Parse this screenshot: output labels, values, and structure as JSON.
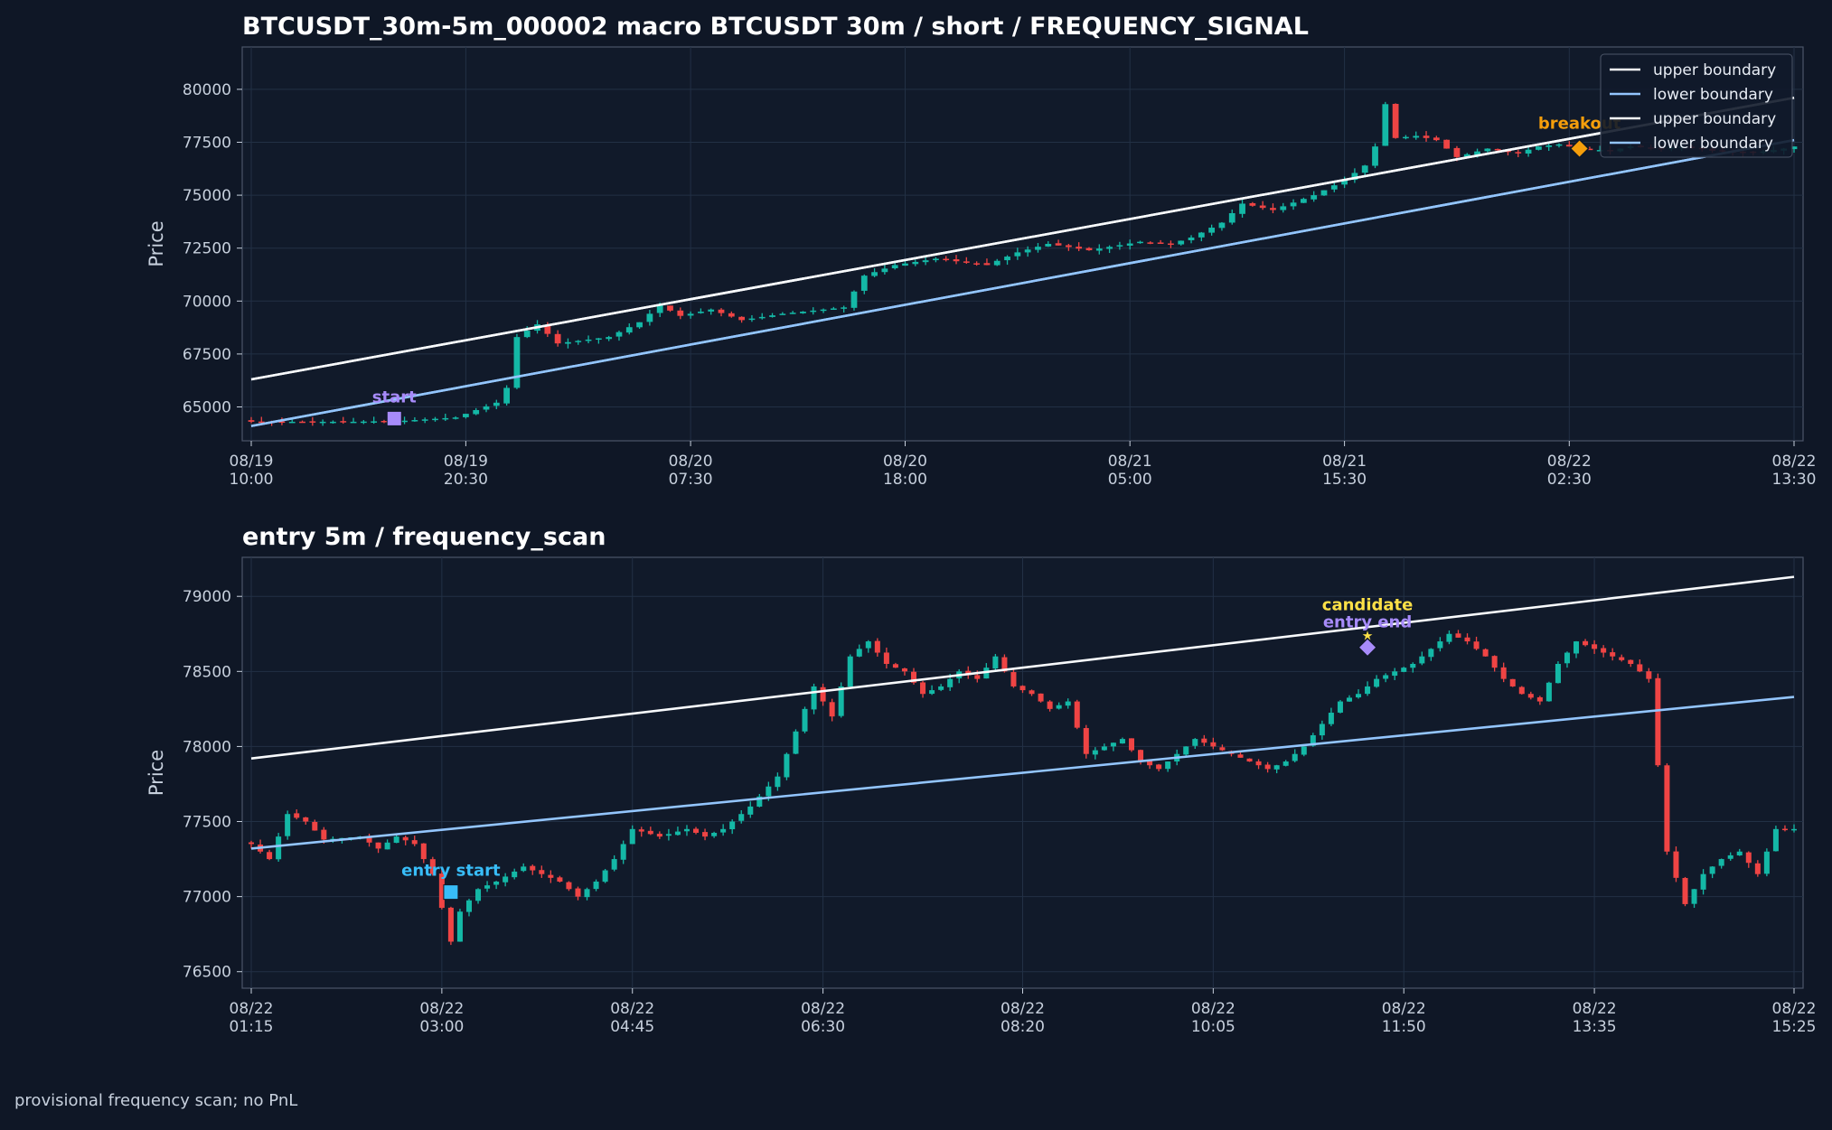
{
  "footer": "provisional frequency scan; no PnL",
  "colors": {
    "background": "#0f1726",
    "panel": "#111a2a",
    "grid": "#223045",
    "text": "#e8edf5",
    "tick": "#c7d0dd",
    "up": "#14b8a6",
    "down": "#ef4444",
    "upper_boundary": "#f8fafc",
    "lower_boundary": "#93c5fd",
    "start": "#a78bfa",
    "entry_start": "#38bdf8",
    "candidate": "#fde047",
    "entry_end": "#a78bfa",
    "breakout": "#f59e0b"
  },
  "chart_data": [
    {
      "type": "candlestick",
      "title": "BTCUSDT_30m-5m_000002 macro BTCUSDT 30m / short / FREQUENCY_SIGNAL",
      "ylabel": "Price",
      "ylim": [
        63400,
        82000
      ],
      "yticks": [
        65000,
        67500,
        70000,
        72500,
        75000,
        77500,
        80000
      ],
      "xticks": [
        {
          "i": 0,
          "date": "08/19",
          "time": "10:00"
        },
        {
          "i": 21,
          "date": "08/19",
          "time": "20:30"
        },
        {
          "i": 43,
          "date": "08/20",
          "time": "07:30"
        },
        {
          "i": 64,
          "date": "08/20",
          "time": "18:00"
        },
        {
          "i": 86,
          "date": "08/21",
          "time": "05:00"
        },
        {
          "i": 107,
          "date": "08/21",
          "time": "15:30"
        },
        {
          "i": 129,
          "date": "08/22",
          "time": "02:30"
        },
        {
          "i": 151,
          "date": "08/22",
          "time": "13:30"
        }
      ],
      "n_candles": 152,
      "close_anchors": [
        [
          0,
          64300
        ],
        [
          10,
          64300
        ],
        [
          15,
          64350
        ],
        [
          20,
          64500
        ],
        [
          24,
          65200
        ],
        [
          25,
          65900
        ],
        [
          26,
          68300
        ],
        [
          27,
          68600
        ],
        [
          28,
          68900
        ],
        [
          30,
          68000
        ],
        [
          35,
          68300
        ],
        [
          38,
          69000
        ],
        [
          40,
          69800
        ],
        [
          42,
          69300
        ],
        [
          45,
          69600
        ],
        [
          48,
          69100
        ],
        [
          52,
          69400
        ],
        [
          58,
          69700
        ],
        [
          60,
          71200
        ],
        [
          63,
          71700
        ],
        [
          67,
          72000
        ],
        [
          72,
          71700
        ],
        [
          75,
          72300
        ],
        [
          78,
          72700
        ],
        [
          82,
          72400
        ],
        [
          87,
          72800
        ],
        [
          90,
          72700
        ],
        [
          92,
          73000
        ],
        [
          95,
          73700
        ],
        [
          97,
          74600
        ],
        [
          100,
          74300
        ],
        [
          104,
          75000
        ],
        [
          107,
          75700
        ],
        [
          109,
          76400
        ],
        [
          110,
          77300
        ],
        [
          111,
          79300
        ],
        [
          112,
          77700
        ],
        [
          114,
          77800
        ],
        [
          116,
          77600
        ],
        [
          118,
          76800
        ],
        [
          121,
          77200
        ],
        [
          124,
          77000
        ],
        [
          126,
          77300
        ],
        [
          128,
          77400
        ],
        [
          130,
          77200
        ],
        [
          133,
          77100
        ],
        [
          135,
          77300
        ],
        [
          138,
          77200
        ],
        [
          140,
          77300
        ],
        [
          143,
          77100
        ],
        [
          147,
          77000
        ],
        [
          150,
          77200
        ],
        [
          151,
          77300
        ]
      ],
      "series": [
        {
          "name": "upper boundary",
          "x": [
            0,
            151
          ],
          "y": [
            66300,
            79600
          ]
        },
        {
          "name": "lower boundary",
          "x": [
            0,
            151
          ],
          "y": [
            64100,
            77600
          ]
        },
        {
          "name": "upper boundary",
          "x": [
            0,
            151
          ],
          "y": [
            66300,
            79600
          ]
        },
        {
          "name": "lower boundary",
          "x": [
            0,
            151
          ],
          "y": [
            64100,
            77600
          ]
        }
      ],
      "markers": [
        {
          "label": "start",
          "i": 14,
          "y": 64450,
          "shape": "square",
          "color": "#a78bfa"
        },
        {
          "label": "breakout",
          "i": 130,
          "y": 77200,
          "shape": "diamond",
          "color": "#f59e0b"
        }
      ],
      "legend_position": "top-right"
    },
    {
      "type": "candlestick",
      "title": "entry 5m / frequency_scan",
      "ylabel": "Price",
      "ylim": [
        76390,
        79260
      ],
      "yticks": [
        76500,
        77000,
        77500,
        78000,
        78500,
        79000
      ],
      "xticks": [
        {
          "i": 0,
          "date": "08/22",
          "time": "01:15"
        },
        {
          "i": 21,
          "date": "08/22",
          "time": "03:00"
        },
        {
          "i": 42,
          "date": "08/22",
          "time": "04:45"
        },
        {
          "i": 63,
          "date": "08/22",
          "time": "06:30"
        },
        {
          "i": 85,
          "date": "08/22",
          "time": "08:20"
        },
        {
          "i": 106,
          "date": "08/22",
          "time": "10:05"
        },
        {
          "i": 127,
          "date": "08/22",
          "time": "11:50"
        },
        {
          "i": 148,
          "date": "08/22",
          "time": "13:35"
        },
        {
          "i": 170,
          "date": "08/22",
          "time": "15:25"
        }
      ],
      "n_candles": 171,
      "close_anchors": [
        [
          0,
          77350
        ],
        [
          2,
          77250
        ],
        [
          4,
          77550
        ],
        [
          6,
          77500
        ],
        [
          8,
          77380
        ],
        [
          12,
          77400
        ],
        [
          14,
          77320
        ],
        [
          16,
          77400
        ],
        [
          18,
          77350
        ],
        [
          20,
          77150
        ],
        [
          22,
          76700
        ],
        [
          23,
          76900
        ],
        [
          25,
          77050
        ],
        [
          27,
          77100
        ],
        [
          30,
          77200
        ],
        [
          32,
          77150
        ],
        [
          34,
          77100
        ],
        [
          36,
          77000
        ],
        [
          38,
          77100
        ],
        [
          40,
          77250
        ],
        [
          42,
          77450
        ],
        [
          45,
          77400
        ],
        [
          48,
          77450
        ],
        [
          50,
          77400
        ],
        [
          52,
          77450
        ],
        [
          55,
          77600
        ],
        [
          58,
          77800
        ],
        [
          60,
          78100
        ],
        [
          62,
          78400
        ],
        [
          64,
          78200
        ],
        [
          66,
          78600
        ],
        [
          68,
          78700
        ],
        [
          70,
          78550
        ],
        [
          72,
          78500
        ],
        [
          74,
          78350
        ],
        [
          76,
          78400
        ],
        [
          78,
          78500
        ],
        [
          80,
          78450
        ],
        [
          82,
          78600
        ],
        [
          84,
          78400
        ],
        [
          86,
          78350
        ],
        [
          88,
          78250
        ],
        [
          90,
          78300
        ],
        [
          92,
          77950
        ],
        [
          94,
          78000
        ],
        [
          96,
          78050
        ],
        [
          98,
          77900
        ],
        [
          100,
          77850
        ],
        [
          102,
          77950
        ],
        [
          104,
          78050
        ],
        [
          106,
          78000
        ],
        [
          108,
          77950
        ],
        [
          110,
          77900
        ],
        [
          112,
          77850
        ],
        [
          114,
          77900
        ],
        [
          116,
          78000
        ],
        [
          118,
          78150
        ],
        [
          120,
          78300
        ],
        [
          122,
          78350
        ],
        [
          124,
          78450
        ],
        [
          126,
          78500
        ],
        [
          128,
          78550
        ],
        [
          130,
          78650
        ],
        [
          132,
          78750
        ],
        [
          134,
          78700
        ],
        [
          136,
          78600
        ],
        [
          138,
          78450
        ],
        [
          140,
          78350
        ],
        [
          142,
          78300
        ],
        [
          144,
          78550
        ],
        [
          146,
          78700
        ],
        [
          148,
          78650
        ],
        [
          150,
          78600
        ],
        [
          152,
          78550
        ],
        [
          154,
          78450
        ],
        [
          156,
          77300
        ],
        [
          158,
          76950
        ],
        [
          160,
          77150
        ],
        [
          162,
          77250
        ],
        [
          164,
          77300
        ],
        [
          166,
          77150
        ],
        [
          168,
          77450
        ],
        [
          170,
          77450
        ]
      ],
      "series": [
        {
          "name": "upper boundary",
          "x": [
            0,
            170
          ],
          "y": [
            77920,
            79130
          ]
        },
        {
          "name": "lower boundary",
          "x": [
            0,
            170
          ],
          "y": [
            77320,
            78330
          ]
        }
      ],
      "markers": [
        {
          "label": "entry start",
          "i": 22,
          "y": 77030,
          "shape": "square",
          "color": "#38bdf8"
        },
        {
          "label": "candidate",
          "i": 123,
          "y": 78740,
          "shape": "star",
          "color": "#fde047"
        },
        {
          "label": "entry end",
          "i": 123,
          "y": 78660,
          "shape": "diamond",
          "color": "#a78bfa"
        }
      ]
    }
  ]
}
